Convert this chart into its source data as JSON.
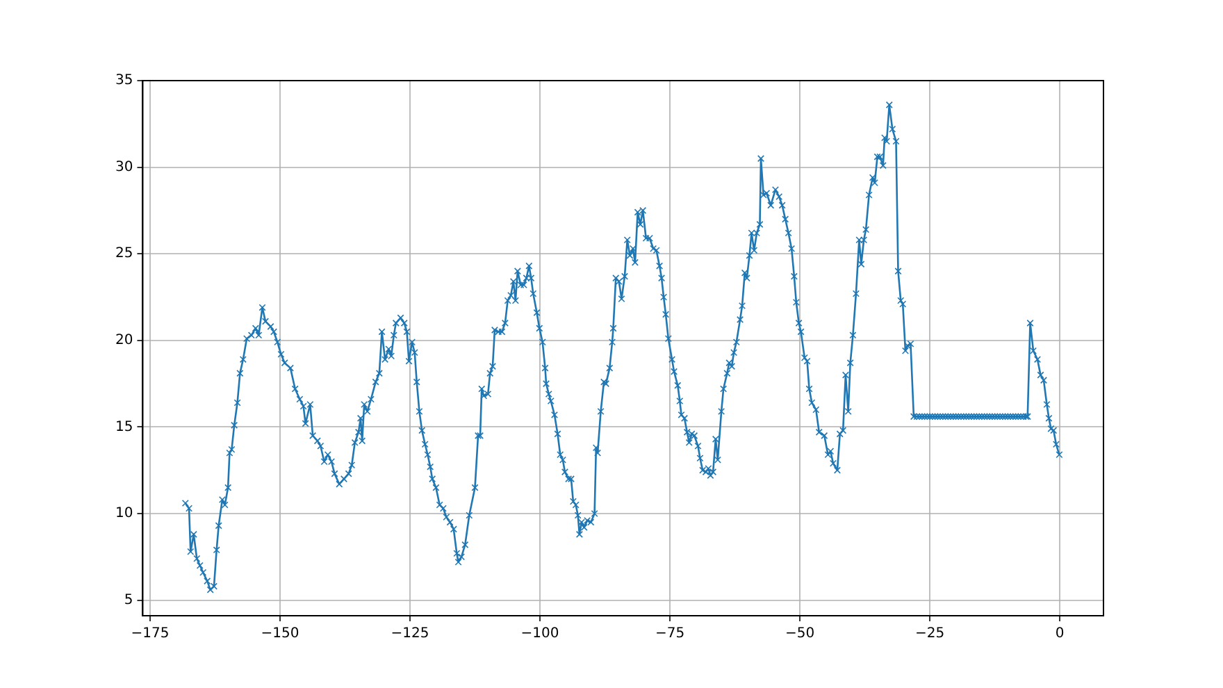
{
  "chart_data": {
    "type": "line",
    "x": [
      -168.2,
      -167.5,
      -167.2,
      -166.6,
      -166,
      -165.4,
      -164.8,
      -164,
      -163.4,
      -162.7,
      -162.2,
      -161.8,
      -161.1,
      -160.6,
      -160,
      -159.7,
      -159.3,
      -158.8,
      -158.2,
      -157.7,
      -157.1,
      -156.4,
      -155.5,
      -154.7,
      -154.1,
      -153.4,
      -152.8,
      -151.8,
      -151.2,
      -150.5,
      -149.8,
      -149.1,
      -148,
      -147.1,
      -146.2,
      -145.5,
      -145.1,
      -144.2,
      -143.7,
      -142.8,
      -142.2,
      -141.5,
      -140.8,
      -140.1,
      -139.5,
      -138.6,
      -137.7,
      -136.8,
      -136.2,
      -135.6,
      -134.9,
      -134.5,
      -134.2,
      -133.8,
      -133.2,
      -132.5,
      -131.6,
      -130.9,
      -130.4,
      -129.8,
      -129.1,
      -128.6,
      -128.1,
      -127.7,
      -126.8,
      -126.1,
      -125.6,
      -125.2,
      -124.6,
      -124.1,
      -123.7,
      -123.2,
      -122.7,
      -122.1,
      -121.6,
      -121.1,
      -120.7,
      -120,
      -119.3,
      -118.6,
      -118,
      -117.3,
      -116.6,
      -116,
      -115.7,
      -115.1,
      -114.4,
      -113.6,
      -112.5,
      -111.9,
      -111.5,
      -111.2,
      -110.8,
      -110,
      -109.6,
      -109.1,
      -108.7,
      -108,
      -107.3,
      -106.7,
      -106.2,
      -105.6,
      -105.1,
      -104.7,
      -104.3,
      -103.7,
      -103.1,
      -102.6,
      -102.1,
      -101.7,
      -101.3,
      -100.6,
      -100.1,
      -99.5,
      -99,
      -98.8,
      -98.3,
      -97.9,
      -97.2,
      -96.6,
      -96.1,
      -95.6,
      -95.2,
      -94.5,
      -94,
      -93.6,
      -93.1,
      -92.7,
      -92.4,
      -92,
      -91.5,
      -90.9,
      -90.2,
      -89.5,
      -89.2,
      -88.9,
      -88.3,
      -87.7,
      -87.3,
      -86.6,
      -86.1,
      -85.9,
      -85.4,
      -84.8,
      -84.3,
      -83.7,
      -83.2,
      -82.7,
      -82.1,
      -81.7,
      -81.2,
      -80.7,
      -80.2,
      -79.6,
      -78.9,
      -78.2,
      -77.6,
      -77,
      -76.6,
      -76.2,
      -75.8,
      -75.3,
      -74.6,
      -74.2,
      -73.5,
      -73.1,
      -72.8,
      -72.2,
      -71.7,
      -71.3,
      -70.8,
      -70.3,
      -69.6,
      -69.2,
      -68.7,
      -68.1,
      -67.6,
      -67.2,
      -66.7,
      -66.2,
      -65.8,
      -65.1,
      -64.7,
      -64,
      -63.6,
      -63.1,
      -62.7,
      -62.2,
      -61.5,
      -61.1,
      -60.6,
      -60.2,
      -59.7,
      -59.3,
      -58.8,
      -58.3,
      -57.7,
      -57.5,
      -57,
      -56.4,
      -55.6,
      -54.7,
      -54,
      -53.4,
      -52.8,
      -52.2,
      -51.6,
      -51.1,
      -50.7,
      -50.2,
      -49.8,
      -49.1,
      -48.6,
      -48.2,
      -47.7,
      -46.9,
      -46.3,
      -45.3,
      -44.6,
      -44.1,
      -43.6,
      -42.8,
      -42.3,
      -41.7,
      -41.2,
      -40.7,
      -40.3,
      -39.8,
      -39.2,
      -38.6,
      -38.2,
      -37.7,
      -37.3,
      -36.7,
      -36,
      -35.6,
      -35.1,
      -34.6,
      -34,
      -33.7,
      -33.3,
      -32.8,
      -32.2,
      -31.5,
      -31.1,
      -30.6,
      -30.2,
      -29.7,
      -29.3,
      -28.7,
      -28.1,
      -27.5,
      -27,
      -26.5,
      -26,
      -25.5,
      -25,
      -24.5,
      -24,
      -23.5,
      -23,
      -22.5,
      -22,
      -21.5,
      -21,
      -20.5,
      -20,
      -19.5,
      -19,
      -18.5,
      -18,
      -17.5,
      -17,
      -16.5,
      -16,
      -15.5,
      -15,
      -14.5,
      -14,
      -13.5,
      -13,
      -12.5,
      -12,
      -11.5,
      -11,
      -10.5,
      -10,
      -9.5,
      -9,
      -8.5,
      -8,
      -7.5,
      -7,
      -6.5,
      -6.2,
      -5.7,
      -5.1,
      -4.3,
      -3.7,
      -3.1,
      -2.5,
      -2.1,
      -1.7,
      -1.2,
      -0.7,
      -0.1
    ],
    "series": [
      {
        "color": "#1f77b4",
        "values": [
          10.6,
          10.3,
          7.8,
          8.8,
          7.4,
          7,
          6.6,
          6.1,
          5.6,
          5.8,
          7.9,
          9.3,
          10.8,
          10.5,
          11.5,
          13.5,
          13.7,
          15.1,
          16.4,
          18.1,
          18.9,
          20.1,
          20.3,
          20.7,
          20.3,
          21.9,
          21.1,
          20.8,
          20.5,
          19.9,
          19.2,
          18.7,
          18.4,
          17.2,
          16.6,
          16.2,
          15.2,
          16.3,
          14.5,
          14.2,
          13.9,
          13,
          13.4,
          13,
          12.3,
          11.7,
          12,
          12.3,
          12.8,
          14.1,
          14.7,
          15.5,
          14.2,
          16.3,
          15.9,
          16.6,
          17.6,
          18.1,
          20.5,
          18.9,
          19.5,
          19.1,
          20.3,
          21,
          21.3,
          21,
          20.5,
          18.8,
          19.9,
          19.3,
          17.6,
          15.9,
          14.8,
          14,
          13.4,
          12.7,
          12,
          11.5,
          10.5,
          10.3,
          9.8,
          9.5,
          9.1,
          7.7,
          7.2,
          7.5,
          8.2,
          9.9,
          11.5,
          14.5,
          14.5,
          17.2,
          16.8,
          16.9,
          18.1,
          18.5,
          20.6,
          20.5,
          20.5,
          21,
          22.3,
          22.6,
          23.4,
          22.3,
          24,
          23.2,
          23.2,
          23.6,
          24.3,
          23.6,
          22.7,
          21.6,
          20.7,
          19.9,
          18.4,
          17.5,
          16.9,
          16.5,
          15.7,
          14.6,
          13.4,
          13.1,
          12.4,
          12,
          12,
          10.7,
          10.5,
          9.9,
          8.8,
          9.5,
          9.2,
          9.6,
          9.5,
          10,
          13.8,
          13.5,
          15.9,
          17.6,
          17.5,
          18.4,
          19.9,
          20.7,
          23.6,
          23.4,
          22.4,
          23.7,
          25.8,
          24.9,
          25.3,
          24.5,
          27.4,
          26.7,
          27.5,
          25.9,
          25.9,
          25.3,
          25.2,
          24.3,
          23.6,
          22.5,
          21.5,
          20.1,
          18.9,
          18.2,
          17.4,
          16.5,
          15.7,
          15.5,
          14.7,
          14.1,
          14.6,
          14.5,
          13.9,
          13.2,
          12.5,
          12.4,
          12.6,
          12.2,
          12.4,
          14.3,
          13.1,
          15.9,
          17.2,
          18.1,
          18.7,
          18.5,
          19.3,
          19.9,
          21.2,
          22,
          23.9,
          23.6,
          24.9,
          26.2,
          25.2,
          26.2,
          26.7,
          30.5,
          28.4,
          28.5,
          27.8,
          28.7,
          28.3,
          27.8,
          27,
          26.2,
          25.3,
          23.7,
          22.2,
          21,
          20.5,
          19,
          18.8,
          17.2,
          16.4,
          16,
          14.7,
          14.5,
          13.4,
          13.6,
          12.9,
          12.5,
          14.6,
          14.8,
          18,
          15.9,
          18.7,
          20.3,
          22.7,
          25.8,
          24.4,
          25.8,
          26.4,
          28.4,
          29.4,
          29.1,
          30.6,
          30.6,
          30.1,
          31.7,
          31.5,
          33.6,
          32.2,
          31.5,
          24,
          22.3,
          22.1,
          19.4,
          19.7,
          19.8,
          15.6,
          15.6,
          15.6,
          15.6,
          15.6,
          15.6,
          15.6,
          15.6,
          15.6,
          15.6,
          15.6,
          15.6,
          15.6,
          15.6,
          15.6,
          15.6,
          15.6,
          15.6,
          15.6,
          15.6,
          15.6,
          15.6,
          15.6,
          15.6,
          15.6,
          15.6,
          15.6,
          15.6,
          15.6,
          15.6,
          15.6,
          15.6,
          15.6,
          15.6,
          15.6,
          15.6,
          15.6,
          15.6,
          15.6,
          15.6,
          15.6,
          15.6,
          15.6,
          15.6,
          15.6,
          21,
          19.4,
          18.9,
          18,
          17.7,
          16.3,
          15.5,
          14.9,
          14.8,
          14,
          13.4
        ]
      }
    ],
    "xlim": [
      -176.4,
      8.4
    ],
    "ylim": [
      4.1,
      35
    ],
    "xticks": [
      {
        "value": -175,
        "label": "−175"
      },
      {
        "value": -150,
        "label": "−150"
      },
      {
        "value": -125,
        "label": "−125"
      },
      {
        "value": -100,
        "label": "−100"
      },
      {
        "value": -75,
        "label": "−75"
      },
      {
        "value": -50,
        "label": "−50"
      },
      {
        "value": -25,
        "label": "−25"
      },
      0
    ],
    "yticks": [
      5,
      10,
      15,
      20,
      25,
      30,
      35
    ],
    "grid": true,
    "marker": "cross",
    "line_style": "solid",
    "legend": false
  }
}
